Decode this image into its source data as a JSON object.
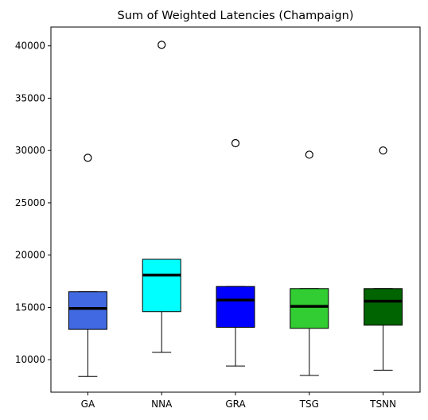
{
  "chart_data": {
    "type": "box",
    "title": "Sum of Weighted Latencies (Champaign)",
    "xlabel": "",
    "ylabel": "",
    "ylim": [
      6900,
      41800
    ],
    "yticks": [
      10000,
      15000,
      20000,
      25000,
      30000,
      35000,
      40000
    ],
    "grid": false,
    "categories": [
      "GA",
      "NNA",
      "GRA",
      "TSG",
      "TSNN"
    ],
    "series": [
      {
        "category": "GA",
        "whisker_low": 8400,
        "q1": 12900,
        "median": 14900,
        "q3": 16500,
        "whisker_high": 16500,
        "outliers": [
          29300
        ],
        "color": "#4169e1"
      },
      {
        "category": "NNA",
        "whisker_low": 10700,
        "q1": 14600,
        "median": 18100,
        "q3": 19600,
        "whisker_high": 19600,
        "outliers": [
          40100
        ],
        "color": "#00ffff"
      },
      {
        "category": "GRA",
        "whisker_low": 9400,
        "q1": 13100,
        "median": 15700,
        "q3": 17000,
        "whisker_high": 17000,
        "outliers": [
          30700
        ],
        "color": "#0000ff"
      },
      {
        "category": "TSG",
        "whisker_low": 8500,
        "q1": 13000,
        "median": 15100,
        "q3": 16800,
        "whisker_high": 16800,
        "outliers": [
          29600
        ],
        "color": "#32cd32"
      },
      {
        "category": "TSNN",
        "whisker_low": 9000,
        "q1": 13300,
        "median": 15600,
        "q3": 16800,
        "whisker_high": 16800,
        "outliers": [
          30000
        ],
        "color": "#006400"
      }
    ]
  }
}
